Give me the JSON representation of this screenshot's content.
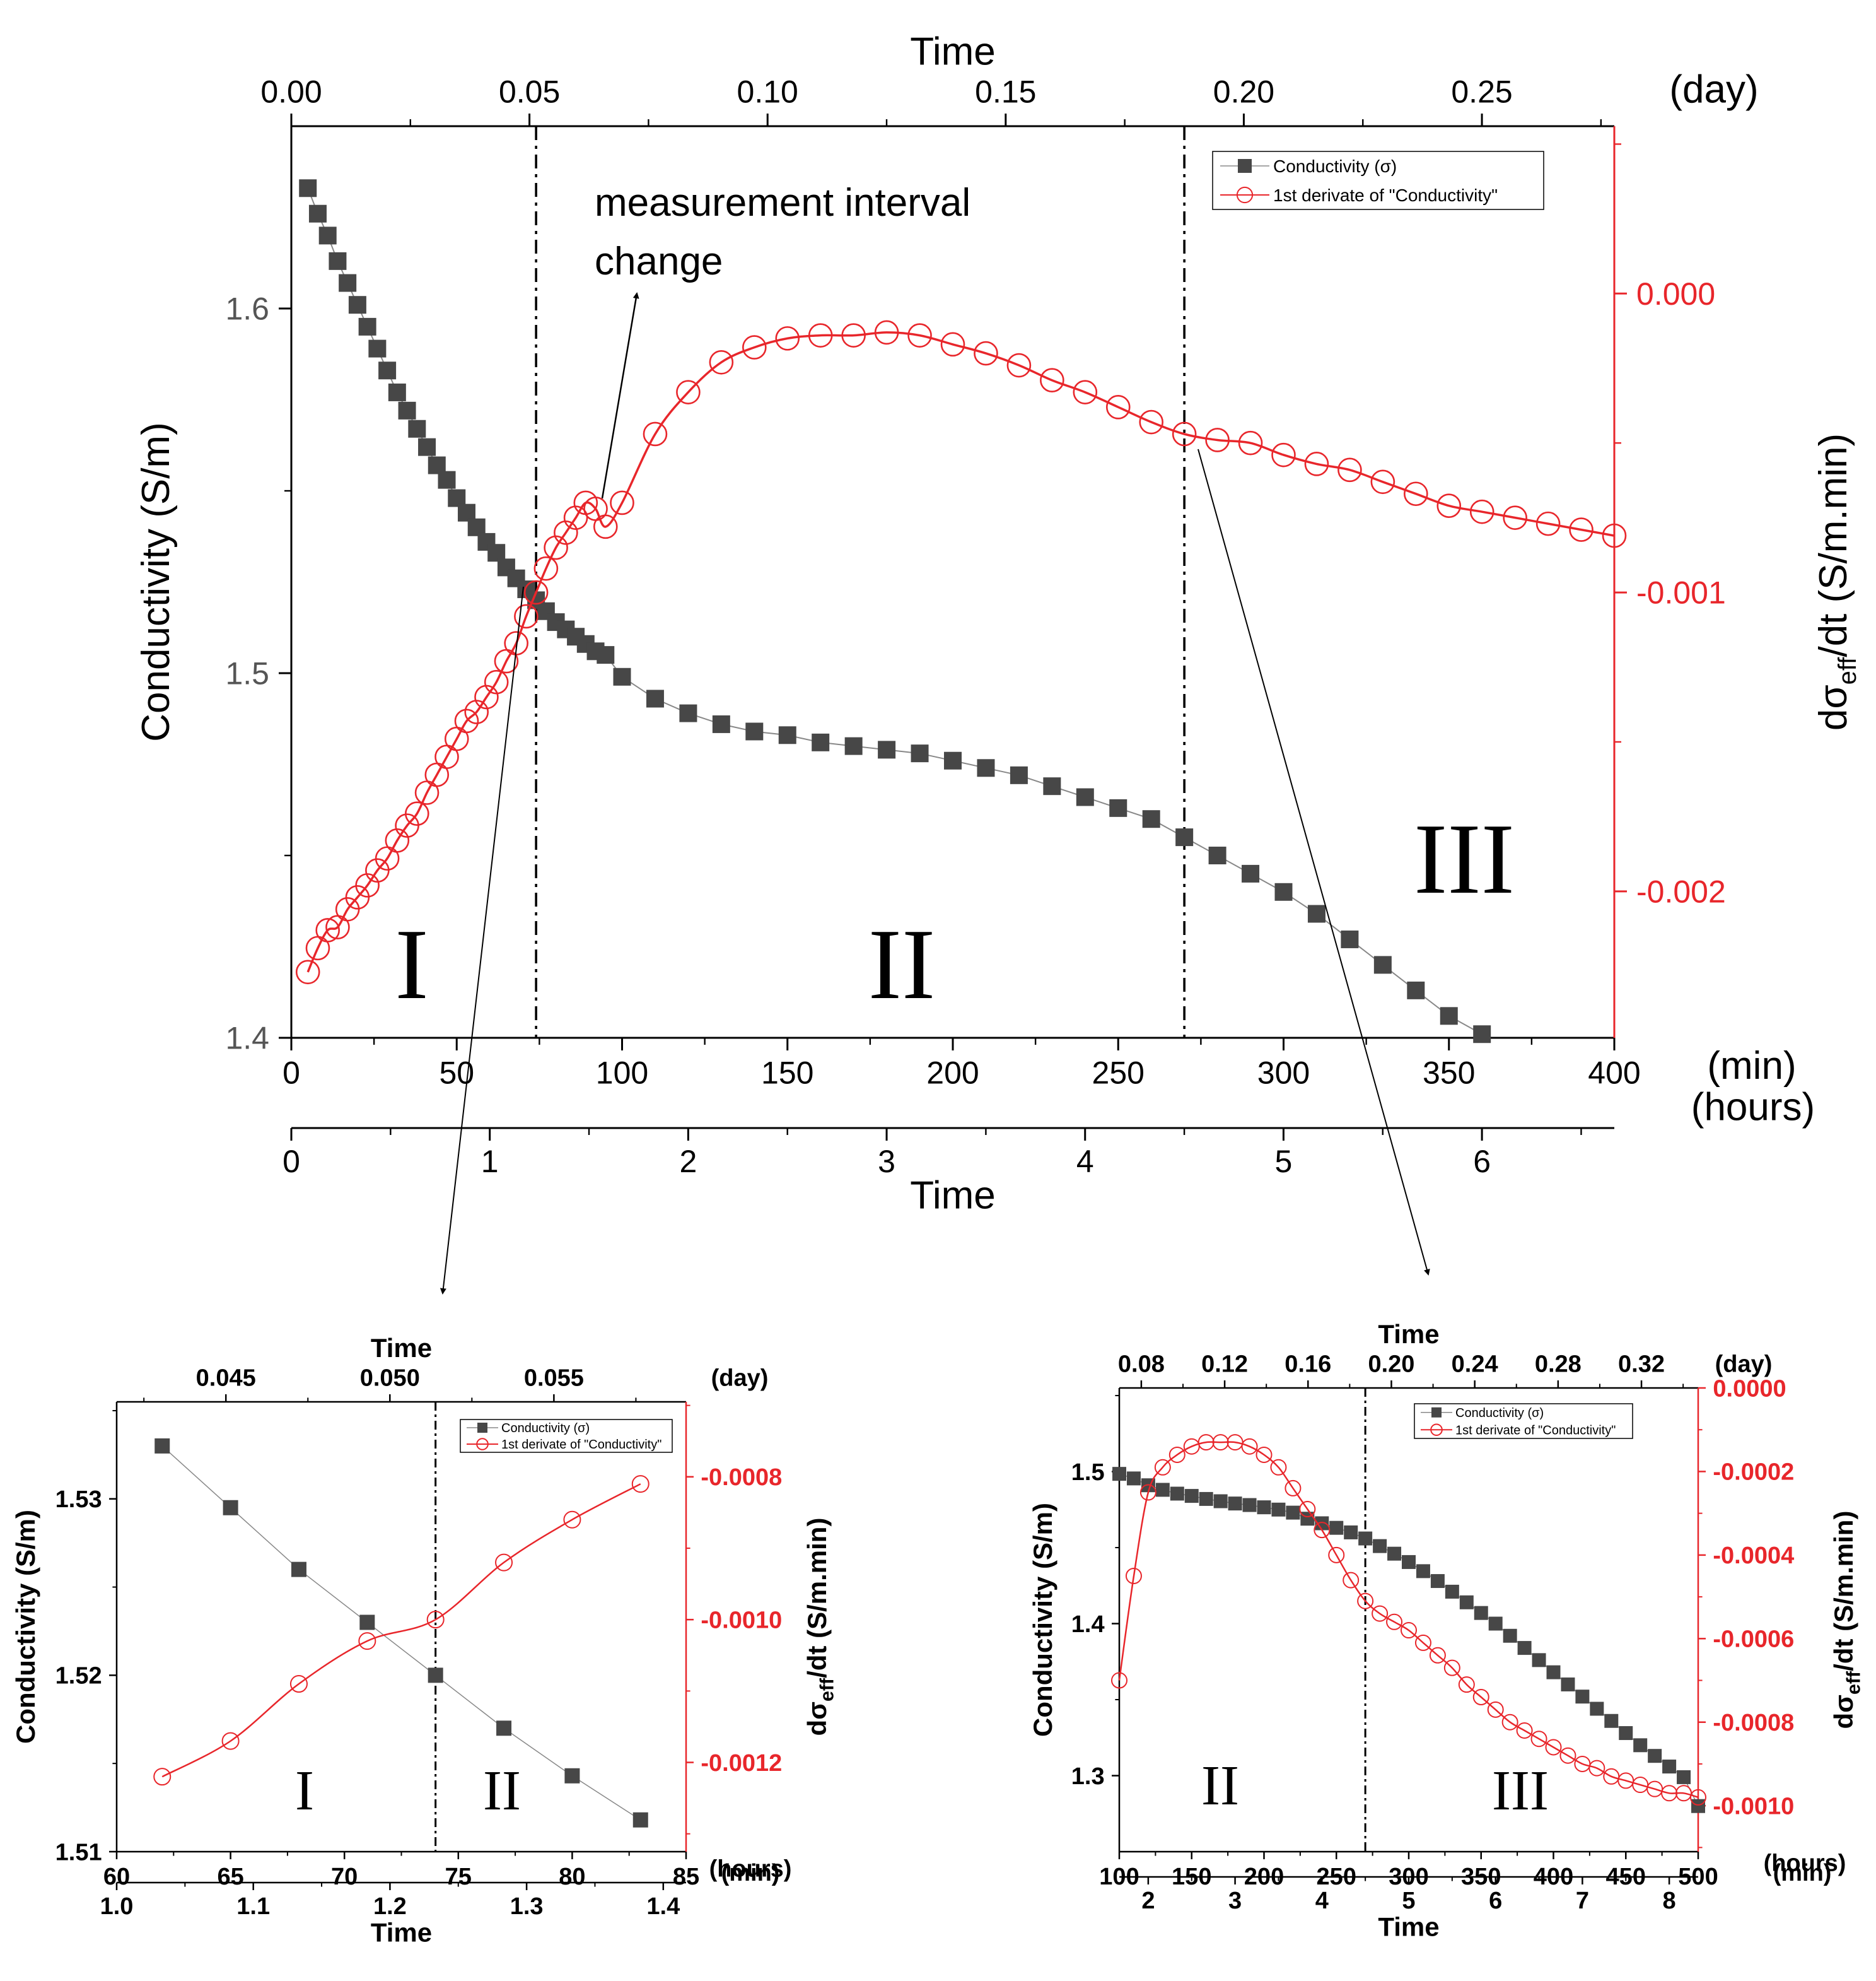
{
  "colors": {
    "conductivity": "#474747",
    "derivative": "#e8262b",
    "axis": "#000000"
  },
  "chart_data": [
    {
      "type": "line",
      "id": "main",
      "title": "",
      "top_axis": {
        "label": "Time",
        "unit": "(day)",
        "range": [
          0.0,
          0.2778
        ],
        "ticks": [
          "0.00",
          "0.05",
          "0.10",
          "0.15",
          "0.20",
          "0.25"
        ],
        "tick_values": [
          0.0,
          0.05,
          0.1,
          0.15,
          0.2,
          0.25
        ]
      },
      "bottom_axis": {
        "unit": "(min)",
        "range": [
          0,
          400
        ],
        "ticks": [
          "0",
          "50",
          "100",
          "150",
          "200",
          "250",
          "300",
          "350",
          "400"
        ],
        "tick_values": [
          0,
          50,
          100,
          150,
          200,
          250,
          300,
          350,
          400
        ]
      },
      "hours_axis": {
        "label": "Time",
        "unit": "(hours)",
        "range": [
          0,
          6.667
        ],
        "ticks": [
          "0",
          "1",
          "2",
          "3",
          "4",
          "5",
          "6"
        ],
        "tick_values": [
          0,
          1,
          2,
          3,
          4,
          5,
          6
        ]
      },
      "y_left": {
        "label": "Conductivity (S/m)",
        "range": [
          1.4,
          1.65
        ],
        "ticks": [
          "1.4",
          "1.5",
          "1.6"
        ],
        "tick_values": [
          1.4,
          1.5,
          1.6
        ]
      },
      "y_right": {
        "label_prefix": "dσ",
        "label_sub": "eff",
        "label_suffix": "/dt (S/m.min)",
        "range": [
          -0.00249,
          0.00056
        ],
        "ticks": [
          "0.000",
          "-0.001",
          "-0.002"
        ],
        "tick_values": [
          0.0,
          -0.001,
          -0.002
        ]
      },
      "legend": {
        "placement": "top-right",
        "items": [
          "Conductivity (σ)",
          "1st derivate of \"Conductivity\""
        ]
      },
      "annotation": {
        "line1": "measurement interval",
        "line2": "change"
      },
      "dividers_min": [
        74,
        270
      ],
      "regions": [
        "I",
        "II",
        "III"
      ],
      "series": [
        {
          "name": "Conductivity (σ)",
          "axis": "left",
          "marker": "square",
          "x": [
            5,
            8,
            11,
            14,
            17,
            20,
            23,
            26,
            29,
            32,
            35,
            38,
            41,
            44,
            47,
            50,
            53,
            56,
            59,
            62,
            65,
            68,
            71,
            74,
            77,
            80,
            83,
            86,
            89,
            92,
            95,
            100,
            110,
            120,
            130,
            140,
            150,
            160,
            170,
            180,
            190,
            200,
            210,
            220,
            230,
            240,
            250,
            260,
            270,
            280,
            290,
            300,
            310,
            320,
            330,
            340,
            350,
            360
          ],
          "values": [
            1.633,
            1.626,
            1.62,
            1.613,
            1.607,
            1.601,
            1.595,
            1.589,
            1.583,
            1.577,
            1.572,
            1.567,
            1.562,
            1.557,
            1.553,
            1.548,
            1.544,
            1.54,
            1.536,
            1.533,
            1.529,
            1.526,
            1.523,
            1.52,
            1.517,
            1.514,
            1.512,
            1.51,
            1.508,
            1.506,
            1.505,
            1.499,
            1.493,
            1.489,
            1.486,
            1.484,
            1.483,
            1.481,
            1.48,
            1.479,
            1.478,
            1.476,
            1.474,
            1.472,
            1.469,
            1.466,
            1.463,
            1.46,
            1.455,
            1.45,
            1.445,
            1.44,
            1.434,
            1.427,
            1.42,
            1.413,
            1.406,
            1.401
          ]
        },
        {
          "name": "1st derivate of \"Conductivity\"",
          "axis": "right",
          "marker": "circle",
          "x": [
            5,
            8,
            11,
            14,
            17,
            20,
            23,
            26,
            29,
            32,
            35,
            38,
            41,
            44,
            47,
            50,
            53,
            56,
            59,
            62,
            65,
            68,
            71,
            74,
            77,
            80,
            83,
            86,
            89,
            92,
            95,
            100,
            110,
            120,
            130,
            140,
            150,
            160,
            170,
            180,
            190,
            200,
            210,
            220,
            230,
            240,
            250,
            260,
            270,
            280,
            290,
            300,
            310,
            320,
            330,
            340,
            350,
            360,
            370,
            380,
            390,
            400
          ],
          "values": [
            -0.00227,
            -0.00219,
            -0.00213,
            -0.00212,
            -0.00206,
            -0.00202,
            -0.00198,
            -0.00193,
            -0.00189,
            -0.00183,
            -0.00178,
            -0.00174,
            -0.00167,
            -0.00161,
            -0.00155,
            -0.00149,
            -0.00143,
            -0.0014,
            -0.00135,
            -0.0013,
            -0.00123,
            -0.00117,
            -0.00108,
            -0.001,
            -0.00092,
            -0.00085,
            -0.0008,
            -0.00075,
            -0.0007,
            -0.00072,
            -0.00078,
            -0.0007,
            -0.00047,
            -0.00033,
            -0.00023,
            -0.00018,
            -0.00015,
            -0.00014,
            -0.00014,
            -0.00013,
            -0.00014,
            -0.00017,
            -0.0002,
            -0.00024,
            -0.00029,
            -0.00033,
            -0.00038,
            -0.00043,
            -0.00047,
            -0.00049,
            -0.0005,
            -0.00054,
            -0.00057,
            -0.00059,
            -0.00063,
            -0.00067,
            -0.00071,
            -0.00073,
            -0.00075,
            -0.00077,
            -0.00079,
            -0.00081
          ]
        }
      ]
    },
    {
      "type": "line",
      "id": "zoom1",
      "top_axis": {
        "label": "Time",
        "unit": "(day)",
        "range": [
          0.04167,
          0.05903
        ],
        "ticks": [
          "0.045",
          "0.050",
          "0.055"
        ],
        "tick_values": [
          0.045,
          0.05,
          0.055
        ]
      },
      "bottom_axis": {
        "unit": "(min)",
        "range": [
          60,
          85
        ],
        "ticks": [
          "60",
          "65",
          "70",
          "75",
          "80",
          "85"
        ],
        "tick_values": [
          60,
          65,
          70,
          75,
          80,
          85
        ]
      },
      "hours_axis": {
        "label": "Time",
        "unit": "(hours)",
        "range": [
          1.0,
          1.4167
        ],
        "ticks": [
          "1.0",
          "1.1",
          "1.2",
          "1.3",
          "1.4"
        ],
        "tick_values": [
          1.0,
          1.1,
          1.2,
          1.3,
          1.4
        ]
      },
      "y_left": {
        "label": "Conductivity (S/m)",
        "range": [
          1.51,
          1.5355
        ],
        "ticks": [
          "1.51",
          "1.52",
          "1.53"
        ],
        "tick_values": [
          1.51,
          1.52,
          1.53
        ]
      },
      "y_right": {
        "label_prefix": "dσ",
        "label_sub": "eff",
        "label_suffix": "/dt (S/m.min)",
        "range": [
          -0.001325,
          -0.000695
        ],
        "ticks": [
          "-0.0008",
          "-0.0010",
          "-0.0012"
        ],
        "tick_values": [
          -0.0008,
          -0.001,
          -0.0012
        ]
      },
      "legend": {
        "placement": "top-right",
        "items": [
          "Conductivity (σ)",
          "1st derivate of \"Conductivity\""
        ]
      },
      "dividers_min": [
        74
      ],
      "regions": [
        "I",
        "II"
      ],
      "series": [
        {
          "name": "Conductivity (σ)",
          "axis": "left",
          "marker": "square",
          "x": [
            62,
            65,
            68,
            71,
            74,
            77,
            80,
            83
          ],
          "values": [
            1.533,
            1.5295,
            1.526,
            1.523,
            1.52,
            1.517,
            1.5143,
            1.5118
          ]
        },
        {
          "name": "1st derivate of \"Conductivity\"",
          "axis": "right",
          "marker": "circle",
          "x": [
            62,
            65,
            68,
            71,
            74,
            77,
            80,
            83
          ],
          "values": [
            -0.00122,
            -0.00117,
            -0.00109,
            -0.00103,
            -0.001,
            -0.00092,
            -0.00086,
            -0.00081
          ]
        }
      ]
    },
    {
      "type": "line",
      "id": "zoom2",
      "top_axis": {
        "label": "Time",
        "unit": "(day)",
        "range": [
          0.06944,
          0.34722
        ],
        "ticks": [
          "0.08",
          "0.12",
          "0.16",
          "0.20",
          "0.24",
          "0.28",
          "0.32"
        ],
        "tick_values": [
          0.08,
          0.12,
          0.16,
          0.2,
          0.24,
          0.28,
          0.32
        ]
      },
      "bottom_axis": {
        "unit": "(min)",
        "range": [
          100,
          500
        ],
        "ticks": [
          "100",
          "150",
          "200",
          "250",
          "300",
          "350",
          "400",
          "450",
          "500"
        ],
        "tick_values": [
          100,
          150,
          200,
          250,
          300,
          350,
          400,
          450,
          500
        ]
      },
      "hours_axis": {
        "label": "Time",
        "unit": "(hours)",
        "range": [
          1.6667,
          8.3333
        ],
        "ticks": [
          "2",
          "3",
          "4",
          "5",
          "6",
          "7",
          "8"
        ],
        "tick_values": [
          2,
          3,
          4,
          5,
          6,
          7,
          8
        ]
      },
      "y_left": {
        "label": "Conductivity (S/m)",
        "range": [
          1.25,
          1.555
        ],
        "ticks": [
          "1.3",
          "1.4",
          "1.5"
        ],
        "tick_values": [
          1.3,
          1.4,
          1.5
        ]
      },
      "y_right": {
        "label_prefix": "dσ",
        "label_sub": "eff",
        "label_suffix": "/dt (S/m.min)",
        "range": [
          -0.00111,
          0.0
        ],
        "ticks": [
          "0.0000",
          "-0.0002",
          "-0.0004",
          "-0.0006",
          "-0.0008",
          "-0.0010"
        ],
        "tick_values": [
          0.0,
          -0.0002,
          -0.0004,
          -0.0006,
          -0.0008,
          -0.001
        ]
      },
      "legend": {
        "placement": "top-right",
        "items": [
          "Conductivity (σ)",
          "1st derivate of \"Conductivity\""
        ]
      },
      "dividers_min": [
        270
      ],
      "regions": [
        "II",
        "III"
      ],
      "series": [
        {
          "name": "Conductivity (σ)",
          "axis": "left",
          "marker": "square",
          "x": [
            100,
            110,
            120,
            130,
            140,
            150,
            160,
            170,
            180,
            190,
            200,
            210,
            220,
            230,
            240,
            250,
            260,
            270,
            280,
            290,
            300,
            310,
            320,
            330,
            340,
            350,
            360,
            370,
            380,
            390,
            400,
            410,
            420,
            430,
            440,
            450,
            460,
            470,
            480,
            490,
            500
          ],
          "values": [
            1.4985,
            1.4955,
            1.491,
            1.488,
            1.4855,
            1.484,
            1.482,
            1.4805,
            1.479,
            1.478,
            1.4765,
            1.475,
            1.473,
            1.469,
            1.466,
            1.463,
            1.46,
            1.456,
            1.451,
            1.446,
            1.4405,
            1.4345,
            1.428,
            1.421,
            1.414,
            1.407,
            1.4,
            1.392,
            1.384,
            1.376,
            1.368,
            1.36,
            1.352,
            1.344,
            1.336,
            1.328,
            1.32,
            1.313,
            1.306,
            1.299,
            1.28
          ]
        },
        {
          "name": "1st derivate of \"Conductivity\"",
          "axis": "right",
          "marker": "circle",
          "x": [
            100,
            110,
            120,
            130,
            140,
            150,
            160,
            170,
            180,
            190,
            200,
            210,
            220,
            230,
            240,
            250,
            260,
            270,
            280,
            290,
            300,
            310,
            320,
            330,
            340,
            350,
            360,
            370,
            380,
            390,
            400,
            410,
            420,
            430,
            440,
            450,
            460,
            470,
            480,
            490,
            500
          ],
          "values": [
            -0.0007,
            -0.00045,
            -0.00025,
            -0.00019,
            -0.00016,
            -0.00014,
            -0.00013,
            -0.00013,
            -0.00013,
            -0.00014,
            -0.00016,
            -0.00019,
            -0.00024,
            -0.00029,
            -0.00034,
            -0.0004,
            -0.00046,
            -0.00051,
            -0.00054,
            -0.00056,
            -0.00058,
            -0.00061,
            -0.00064,
            -0.00067,
            -0.00071,
            -0.00074,
            -0.00077,
            -0.0008,
            -0.00082,
            -0.00084,
            -0.00086,
            -0.00088,
            -0.0009,
            -0.00091,
            -0.00093,
            -0.00094,
            -0.00095,
            -0.00096,
            -0.00097,
            -0.00097,
            -0.00098
          ]
        }
      ]
    }
  ]
}
